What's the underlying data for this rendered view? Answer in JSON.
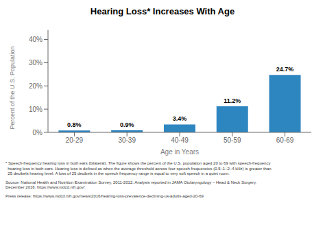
{
  "chart_data": {
    "type": "bar",
    "title": "Hearing Loss* Increases With Age",
    "categories": [
      "20-29",
      "30-39",
      "40-49",
      "50-59",
      "60-69"
    ],
    "values": [
      0.8,
      0.9,
      3.4,
      11.2,
      24.7
    ],
    "value_labels": [
      "0.8%",
      "0.9%",
      "3.4%",
      "11.2%",
      "24.7%"
    ],
    "data_labels": true,
    "xlabel": "Age in Years",
    "ylabel": "Percent of the U.S. Population",
    "ylim": [
      0,
      44
    ],
    "yticks": [
      {
        "value": 0,
        "label": "0%"
      },
      {
        "value": 10,
        "label": "10%"
      },
      {
        "value": 20,
        "label": "20%"
      },
      {
        "value": 30,
        "label": "30%"
      },
      {
        "value": 40,
        "label": "40%"
      }
    ],
    "color": "#2e86c1",
    "annotations": [
      "* Speech-frequency hearing loss in both ears (bilateral). The figure shows the percent of the U.S. population aged 20 to 69 with speech-frequency",
      "  hearing loss in both ears. Hearing loss is defined as when the average threshold across four speech frequencies (0.5–1–2–4 kHz) is greater than",
      "  25 decibels hearing level. A loss of 25 decibels in the speech frequency range is equal to very soft speech in a quiet room.",
      "Source: National Health and Nutrition Examination Survey, 2011-2012. Analysis reported in JAMA Otolaryngology – Head & Neck Surgery,",
      "December 2016. https://www.nidcd.nih.gov/",
      "Press release: https://www.nidcd.nih.gov/news/2016/hearing-loss-prevalence-declining-us-adults-aged-20-69"
    ]
  }
}
